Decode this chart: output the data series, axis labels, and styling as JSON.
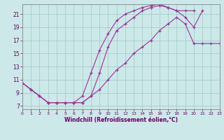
{
  "bg_color": "#cce8e8",
  "grid_color": "#a0c8c8",
  "line_color": "#993399",
  "tick_color": "#660066",
  "xlabel": "Windchill (Refroidissement éolien,°C)",
  "xlim": [
    0,
    23
  ],
  "ylim": [
    6.5,
    22.5
  ],
  "yticks": [
    7,
    9,
    11,
    13,
    15,
    17,
    19,
    21
  ],
  "xticks": [
    0,
    1,
    2,
    3,
    4,
    5,
    6,
    7,
    8,
    9,
    10,
    11,
    12,
    13,
    14,
    15,
    16,
    17,
    18,
    19,
    20,
    21,
    22,
    23
  ],
  "line1_x": [
    0,
    1,
    2,
    3,
    4,
    5,
    6,
    7,
    8,
    9,
    10,
    11,
    12,
    13,
    14,
    15,
    16,
    17,
    18,
    19,
    20,
    21,
    22,
    23
  ],
  "line1_y": [
    10.5,
    9.5,
    8.5,
    7.5,
    7.5,
    7.5,
    7.5,
    7.5,
    8.5,
    9.5,
    11.0,
    12.5,
    13.5,
    15.0,
    16.0,
    17.0,
    18.5,
    19.5,
    20.5,
    19.5,
    16.5,
    16.5,
    16.5,
    16.5
  ],
  "line2_x": [
    0,
    1,
    2,
    3,
    4,
    5,
    6,
    7,
    8,
    9,
    10,
    11,
    12,
    13,
    14,
    15,
    16,
    17,
    18,
    19,
    20
  ],
  "line2_y": [
    10.5,
    9.5,
    8.5,
    7.5,
    7.5,
    7.5,
    7.5,
    7.5,
    8.5,
    12.0,
    16.0,
    18.5,
    19.5,
    20.5,
    21.5,
    22.0,
    22.3,
    22.0,
    21.5,
    21.5,
    21.5
  ],
  "line3_x": [
    0,
    1,
    2,
    3,
    4,
    5,
    6,
    7,
    8,
    9,
    10,
    11,
    12,
    13,
    14,
    15,
    16,
    17,
    18,
    19,
    20,
    21
  ],
  "line3_y": [
    10.5,
    9.5,
    8.5,
    7.5,
    7.5,
    7.5,
    7.5,
    8.5,
    12.0,
    15.5,
    18.0,
    20.0,
    21.0,
    21.5,
    22.0,
    22.3,
    22.5,
    22.0,
    21.5,
    20.5,
    19.0,
    21.5
  ]
}
